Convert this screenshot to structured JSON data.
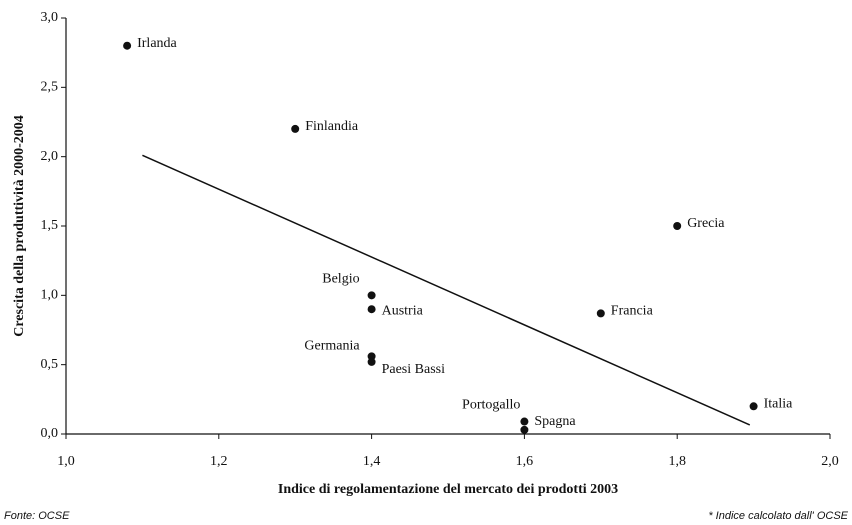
{
  "chart_data": {
    "type": "scatter",
    "y_label": "Crescita della produttività 2000-2004",
    "x_label": "Indice di regolamentazione del mercato dei prodotti 2003",
    "source": "Fonte: OCSE",
    "note": "* Indice calcolato dall' OCSE",
    "xlim": [
      1.0,
      2.0
    ],
    "xticks": [
      {
        "value": 1.0,
        "label": "1,0"
      },
      {
        "value": 1.2,
        "label": "1,2"
      },
      {
        "value": 1.4,
        "label": "1,4"
      },
      {
        "value": 1.6,
        "label": "1,6"
      },
      {
        "value": 1.8,
        "label": "1,8"
      },
      {
        "value": 2.0,
        "label": "2,0"
      }
    ],
    "ylim": [
      0,
      3.0
    ],
    "yticks": [
      {
        "value": 0,
        "label": "0,0"
      },
      {
        "value": 0.5,
        "label": "0,5"
      },
      {
        "value": 1.0,
        "label": "1,0"
      },
      {
        "value": 1.5,
        "label": "1,5"
      },
      {
        "value": 2.0,
        "label": "2,0"
      },
      {
        "value": 2.5,
        "label": "2,5"
      },
      {
        "value": 3.0,
        "label": "3,0"
      }
    ],
    "points": {
      "color": "#111111",
      "labels": [
        "Irlanda",
        "Finlandia",
        "Grecia",
        "Belgio",
        "Austria",
        "Francia",
        "Germania",
        "Paesi Bassi",
        "Portogallo",
        "Spagna",
        "Italia"
      ],
      "x": [
        1.08,
        1.3,
        1.8,
        1.4,
        1.4,
        1.7,
        1.4,
        1.4,
        1.6,
        1.6,
        1.9
      ],
      "y": [
        2.8,
        2.2,
        1.5,
        1.0,
        0.9,
        0.87,
        0.56,
        0.52,
        0.09,
        0.03,
        0.2
      ]
    },
    "trend": {
      "color": "#111111",
      "x": [
        1.1,
        1.895
      ],
      "y": [
        2.01,
        0.065
      ]
    }
  }
}
